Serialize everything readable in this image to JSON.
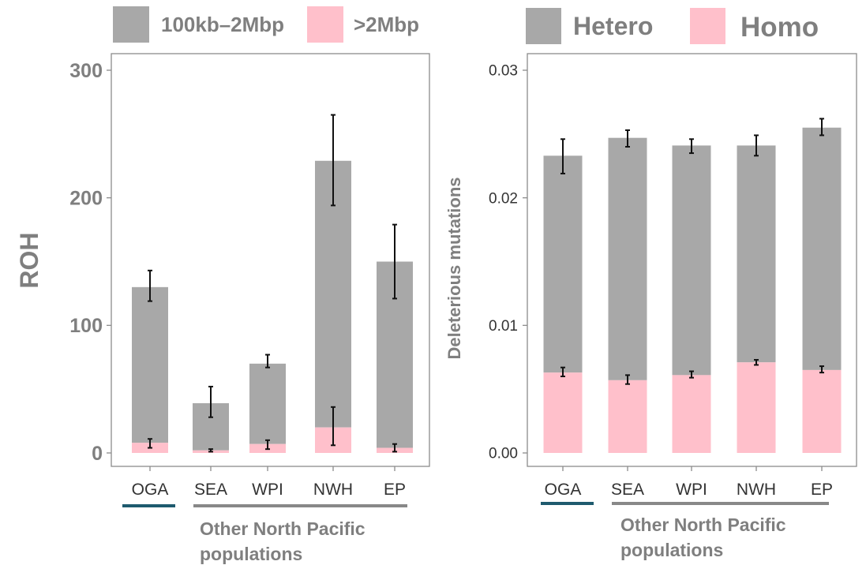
{
  "colors": {
    "gray": "#a8a8a8",
    "pink": "#ffc0cb",
    "text_gray": "#7f7f7f",
    "tick_dark": "#333333",
    "underline_oga": "#1e5a6e",
    "underline_other": "#888888",
    "frame": "#8c8c8c"
  },
  "group_labels": {
    "oga": "OGA",
    "other_line1": "Other North Pacific",
    "other_line2": "populations"
  },
  "chart_data": [
    {
      "type": "bar",
      "stacked": true,
      "legend_position": "top",
      "title": "",
      "xlabel": "",
      "ylabel": "ROH",
      "ylim": [
        0,
        310
      ],
      "yticks": [
        0,
        100,
        200,
        300
      ],
      "ytick_labels": [
        "0",
        "100",
        "200",
        "300"
      ],
      "categories": [
        "OGA",
        "SEA",
        "WPI",
        "NWH",
        "EP"
      ],
      "series": [
        {
          "name": ">2Mbp",
          "color": "#ffc0cb",
          "values": [
            8,
            2,
            7,
            20,
            4
          ],
          "error_low": [
            4,
            1,
            3,
            6,
            1
          ],
          "error_high": [
            11,
            3,
            10,
            36,
            7
          ]
        },
        {
          "name": "100kb–2Mbp",
          "color": "#a8a8a8",
          "values": [
            122,
            37,
            63,
            209,
            146
          ],
          "error_low": [
            119,
            28,
            67,
            194,
            121
          ],
          "error_high": [
            143,
            52,
            77,
            265,
            179
          ]
        }
      ]
    },
    {
      "type": "bar",
      "stacked": true,
      "legend_position": "top",
      "title": "",
      "xlabel": "",
      "ylabel": "Deleterious mutations",
      "ylim": [
        0,
        0.0305
      ],
      "yticks": [
        0,
        0.01,
        0.02,
        0.03
      ],
      "ytick_labels": [
        "0.00",
        "0.01",
        "0.02",
        "0.03"
      ],
      "categories": [
        "OGA",
        "SEA",
        "WPI",
        "NWH",
        "EP"
      ],
      "series": [
        {
          "name": "Homo",
          "color": "#ffc0cb",
          "values": [
            0.0063,
            0.0057,
            0.0061,
            0.0071,
            0.0065
          ],
          "error_low": [
            0.006,
            0.0054,
            0.0059,
            0.0069,
            0.0063
          ],
          "error_high": [
            0.0067,
            0.0061,
            0.0064,
            0.0073,
            0.0068
          ]
        },
        {
          "name": "Hetero",
          "color": "#a8a8a8",
          "values": [
            0.017,
            0.019,
            0.018,
            0.017,
            0.019
          ],
          "error_low": [
            0.0219,
            0.024,
            0.0235,
            0.0233,
            0.0249
          ],
          "error_high": [
            0.0246,
            0.0253,
            0.0246,
            0.0249,
            0.0262
          ]
        }
      ]
    }
  ]
}
